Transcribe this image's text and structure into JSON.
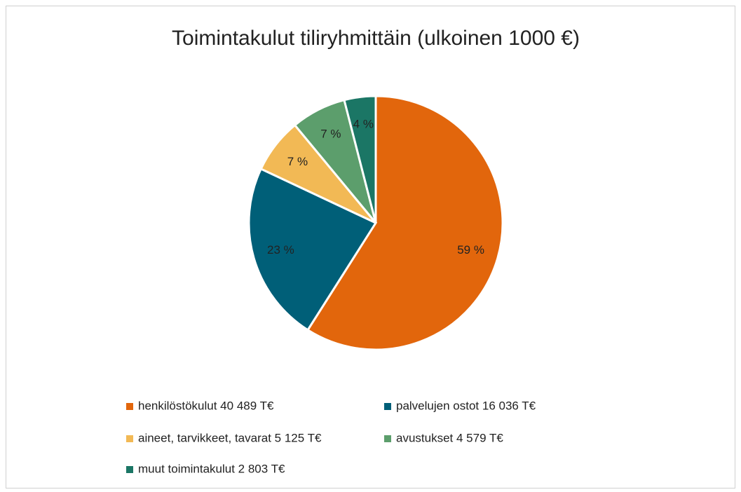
{
  "chart_data": {
    "type": "pie",
    "title": "Toimintakulut tiliryhmittäin (ulkoinen 1000 €)",
    "categories": [
      "henkilöstökulut 40 489 T€",
      "palvelujen ostot 16 036 T€",
      "aineet, tarvikkeet, tavarat 5 125 T€",
      "avustukset 4 579 T€",
      "muut toimintakulut 2 803 T€"
    ],
    "values": [
      59,
      23,
      7,
      7,
      4
    ],
    "value_labels": [
      "59 %",
      "23 %",
      "7 %",
      "7 %",
      "4 %"
    ],
    "colors": [
      "#e2660c",
      "#005f78",
      "#f2b955",
      "#5c9e6c",
      "#1b7665"
    ],
    "legend": "bottom"
  }
}
